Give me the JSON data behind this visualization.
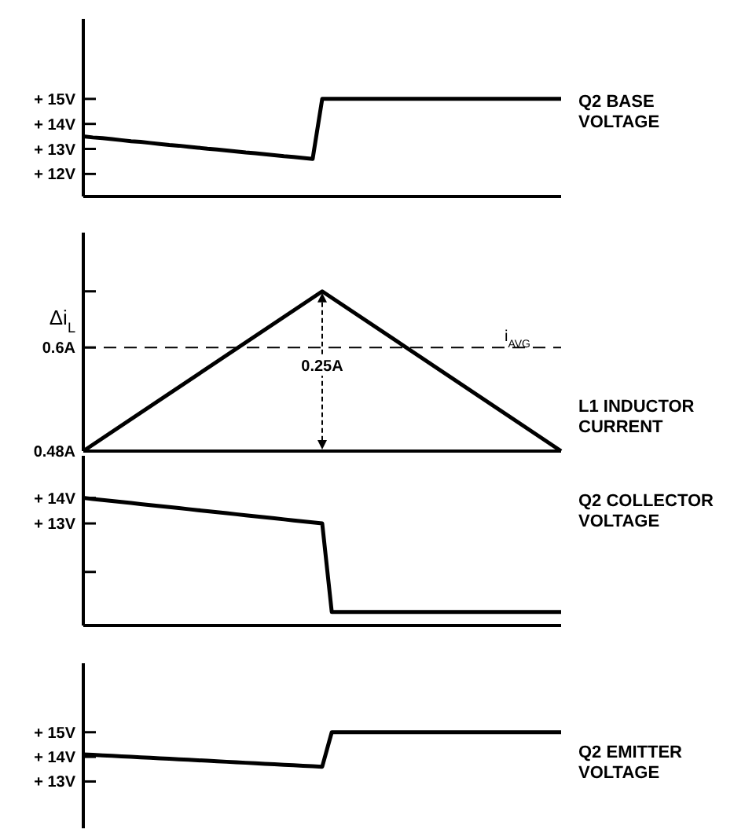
{
  "chart_data": [
    {
      "type": "line",
      "ylim": [
        11.1,
        18.2
      ],
      "yticks": [
        {
          "value": 12,
          "label": "+ 12V"
        },
        {
          "value": 13,
          "label": "+ 13V"
        },
        {
          "value": 14,
          "label": "+ 14V"
        },
        {
          "value": 15,
          "label": "+ 15V"
        }
      ],
      "tick_labels": "y",
      "categories": [
        null,
        null,
        null,
        null,
        null,
        null,
        null,
        null,
        null,
        null,
        null,
        null,
        null,
        null,
        null,
        null,
        null,
        null,
        null,
        null,
        null,
        null,
        null,
        null,
        null,
        null,
        null,
        null,
        null,
        null,
        null,
        null,
        null,
        null,
        null,
        null,
        null,
        null,
        null,
        null,
        null,
        null,
        null,
        null,
        null,
        null,
        null,
        null,
        null,
        null,
        null
      ],
      "series": [
        {
          "name": "Q2 BASE VOLTAGE",
          "color": "#000000",
          "values": [
            13.5,
            13.46,
            13.43,
            13.39,
            13.35,
            13.31,
            13.28,
            13.24,
            13.2,
            13.16,
            13.13,
            13.09,
            13.05,
            13.01,
            12.98,
            12.94,
            12.9,
            12.86,
            12.83,
            12.79,
            12.75,
            12.71,
            12.68,
            12.64,
            12.6,
            15,
            15,
            15,
            15,
            15,
            15,
            15,
            15,
            15,
            15,
            15,
            15,
            15,
            15,
            15,
            15,
            15,
            15,
            15,
            15,
            15,
            15,
            15,
            15,
            15,
            15
          ]
        }
      ]
    },
    {
      "type": "line",
      "ylabel": "Δi$_{L}$",
      "ylim": [
        0.48,
        0.733
      ],
      "yticks": [
        {
          "value": 0.48,
          "label": "0.48A"
        },
        {
          "value": 0.6,
          "label": "0.6A"
        },
        {
          "value": 0.665,
          "label": null
        }
      ],
      "tick_labels": "y",
      "annotations": [
        "0.25A"
      ],
      "categories": [
        null,
        null,
        null
      ],
      "ref_lines": [
        {
          "axis": "y",
          "value": 0.6,
          "label": "i$_{AVG}$",
          "line_style": "dashed"
        }
      ],
      "series": [
        {
          "name": "L1 INDUCTOR CURRENT",
          "color": "#000000",
          "values": [
            0.48,
            0.665,
            0.48
          ]
        }
      ]
    },
    {
      "type": "line",
      "ylim": [
        9,
        15.65
      ],
      "yticks": [
        {
          "value": 11.1,
          "label": null
        },
        {
          "value": 13,
          "label": "+ 13V"
        },
        {
          "value": 14,
          "label": "+ 14V"
        }
      ],
      "tick_labels": "y",
      "categories": [
        null,
        null,
        null,
        null,
        null,
        null,
        null,
        null,
        null,
        null,
        null,
        null,
        null,
        null,
        null,
        null,
        null,
        null,
        null,
        null,
        null,
        null,
        null,
        null,
        null,
        null,
        null,
        null,
        null,
        null,
        null,
        null,
        null,
        null,
        null,
        null,
        null,
        null,
        null,
        null,
        null,
        null,
        null,
        null,
        null,
        null,
        null,
        null,
        null,
        null,
        null
      ],
      "series": [
        {
          "name": "Q2 COLLECTOR VOLTAGE",
          "color": "#000000",
          "values": [
            14,
            13.96,
            13.92,
            13.88,
            13.84,
            13.8,
            13.76,
            13.72,
            13.68,
            13.64,
            13.6,
            13.56,
            13.52,
            13.48,
            13.44,
            13.4,
            13.36,
            13.32,
            13.28,
            13.24,
            13.2,
            13.16,
            13.12,
            13.08,
            13.04,
            13,
            9.53,
            9.53,
            9.53,
            9.53,
            9.53,
            9.53,
            9.53,
            9.53,
            9.53,
            9.53,
            9.53,
            9.53,
            9.53,
            9.53,
            9.53,
            9.53,
            9.53,
            9.53,
            9.53,
            9.53,
            9.53,
            9.53,
            9.53,
            9.53,
            9.53
          ]
        }
      ]
    },
    {
      "type": "line",
      "ylim": [
        11.1,
        17.8
      ],
      "yticks": [
        {
          "value": 13,
          "label": "+ 13V"
        },
        {
          "value": 14,
          "label": "+ 14V"
        },
        {
          "value": 15,
          "label": "+ 15V"
        }
      ],
      "tick_labels": "y",
      "categories": [
        null,
        null,
        null,
        null,
        null,
        null,
        null,
        null,
        null,
        null,
        null,
        null,
        null,
        null,
        null,
        null,
        null,
        null,
        null,
        null,
        null,
        null,
        null,
        null,
        null,
        null,
        null,
        null,
        null,
        null,
        null,
        null,
        null,
        null,
        null,
        null,
        null,
        null,
        null,
        null,
        null,
        null,
        null,
        null,
        null,
        null,
        null,
        null,
        null,
        null,
        null
      ],
      "series": [
        {
          "name": "Q2 EMITTER VOLTAGE",
          "color": "#000000",
          "values": [
            14.1,
            14.08,
            14.06,
            14.04,
            14.02,
            14,
            13.98,
            13.96,
            13.94,
            13.92,
            13.9,
            13.88,
            13.86,
            13.84,
            13.82,
            13.8,
            13.78,
            13.76,
            13.74,
            13.72,
            13.7,
            13.68,
            13.66,
            13.64,
            13.62,
            13.6,
            15,
            15,
            15,
            15,
            15,
            15,
            15,
            15,
            15,
            15,
            15,
            15,
            15,
            15,
            15,
            15,
            15,
            15,
            15,
            15,
            15,
            15,
            15,
            15,
            15
          ]
        }
      ]
    }
  ]
}
